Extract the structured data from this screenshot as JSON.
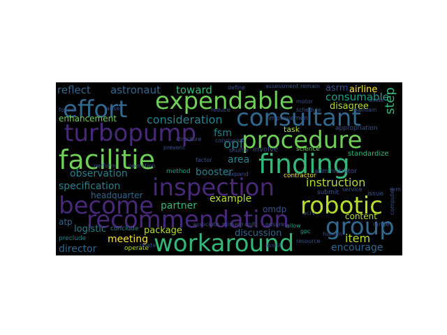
{
  "word_cloud": {
    "background": "#000000",
    "palette": {
      "purple": "#482878",
      "indigo": "#3b528b",
      "blue": "#31688e",
      "teal": "#26828e",
      "tealgreen": "#1f9e89",
      "green": "#35b779",
      "lightgreen": "#6ece58",
      "yellowgreen": "#b5de2b",
      "yellow": "#fde725"
    },
    "words": [
      {
        "text": "expendable",
        "color": "#6ece58"
      },
      {
        "text": "effort",
        "color": "#31688e"
      },
      {
        "text": "consultant",
        "color": "#31688e"
      },
      {
        "text": "turbopump",
        "color": "#482878"
      },
      {
        "text": "procedure",
        "color": "#6ece58"
      },
      {
        "text": "facilitie",
        "color": "#6ece58"
      },
      {
        "text": "finding",
        "color": "#35b779"
      },
      {
        "text": "inspection",
        "color": "#482878"
      },
      {
        "text": "become",
        "color": "#482878"
      },
      {
        "text": "robotic",
        "color": "#b5de2b"
      },
      {
        "text": "recommendation",
        "color": "#482878"
      },
      {
        "text": "group",
        "color": "#31688e"
      },
      {
        "text": "workaround",
        "color": "#35b779"
      },
      {
        "text": "reflect",
        "color": "#31688e"
      },
      {
        "text": "astronaut",
        "color": "#31688e"
      },
      {
        "text": "toward",
        "color": "#35b779"
      },
      {
        "text": "airline",
        "color": "#fde725"
      },
      {
        "text": "consumable",
        "color": "#1f9e89"
      },
      {
        "text": "asrm",
        "color": "#3b528b"
      },
      {
        "text": "disagree",
        "color": "#b5de2b"
      },
      {
        "text": "enhancement",
        "color": "#6ece58"
      },
      {
        "text": "consideration",
        "color": "#26828e"
      },
      {
        "text": "task",
        "color": "#b5de2b"
      },
      {
        "text": "step",
        "color": "#35b779"
      },
      {
        "text": "fsm",
        "color": "#26828e"
      },
      {
        "text": "opf",
        "color": "#26828e"
      },
      {
        "text": "area",
        "color": "#26828e"
      },
      {
        "text": "observation",
        "color": "#26828e"
      },
      {
        "text": "booster",
        "color": "#26828e"
      },
      {
        "text": "instruction",
        "color": "#b5de2b"
      },
      {
        "text": "specification",
        "color": "#26828e"
      },
      {
        "text": "headquarter",
        "color": "#31688e"
      },
      {
        "text": "example",
        "color": "#b5de2b"
      },
      {
        "text": "partner",
        "color": "#35b779"
      },
      {
        "text": "omdp",
        "color": "#3b528b"
      },
      {
        "text": "content",
        "color": "#b5de2b"
      },
      {
        "text": "logistic",
        "color": "#26828e"
      },
      {
        "text": "package",
        "color": "#b5de2b"
      },
      {
        "text": "meeting",
        "color": "#fde725"
      },
      {
        "text": "discussion",
        "color": "#31688e"
      },
      {
        "text": "item",
        "color": "#b5de2b"
      },
      {
        "text": "encourage",
        "color": "#31688e"
      },
      {
        "text": "director",
        "color": "#31688e"
      },
      {
        "text": "atp",
        "color": "#31688e"
      },
      {
        "text": "conclude",
        "color": "#26828e"
      },
      {
        "text": "operate",
        "color": "#b5de2b"
      },
      {
        "text": "preclude",
        "color": "#26828e"
      },
      {
        "text": "method",
        "color": "#1f9e89"
      },
      {
        "text": "contractor",
        "color": "#fde725"
      },
      {
        "text": "science",
        "color": "#6ece58"
      },
      {
        "text": "involve",
        "color": "#3b528b"
      },
      {
        "text": "standardize",
        "color": "#35b779"
      },
      {
        "text": "improvement",
        "color": "#3b528b"
      },
      {
        "text": "appropriation",
        "color": "#3b528b"
      },
      {
        "text": "conclusion",
        "color": "#3b528b"
      },
      {
        "text": "shuttle",
        "color": "#3b528b"
      },
      {
        "text": "administrator",
        "color": "#3b528b"
      },
      {
        "text": "submit",
        "color": "#3b528b"
      },
      {
        "text": "service",
        "color": "#3b528b"
      },
      {
        "text": "issue",
        "color": "#3b528b"
      },
      {
        "text": "computer",
        "color": "#3b528b"
      },
      {
        "text": "allow",
        "color": "#1f9e89"
      },
      {
        "text": "gpc",
        "color": "#1f9e89"
      },
      {
        "text": "drm",
        "color": "#3b528b"
      },
      {
        "text": "human",
        "color": "#3b528b"
      },
      {
        "text": "arise",
        "color": "#3b528b"
      },
      {
        "text": "follow",
        "color": "#3b528b"
      },
      {
        "text": "motor",
        "color": "#3b528b"
      },
      {
        "text": "maintain",
        "color": "#3b528b"
      },
      {
        "text": "reduce",
        "color": "#3b528b"
      },
      {
        "text": "assessment",
        "color": "#3b528b"
      },
      {
        "text": "define",
        "color": "#3b528b"
      },
      {
        "text": "expand",
        "color": "#3b528b"
      },
      {
        "text": "factor",
        "color": "#3b528b"
      },
      {
        "text": "structure",
        "color": "#3b528b"
      },
      {
        "text": "prevent",
        "color": "#3b528b"
      },
      {
        "text": "resource",
        "color": "#3b528b"
      },
      {
        "text": "assist",
        "color": "#3b528b"
      },
      {
        "text": "schedule",
        "color": "#3b528b"
      },
      {
        "text": "ensure",
        "color": "#3b528b"
      },
      {
        "text": "associate",
        "color": "#3b528b"
      },
      {
        "text": "mission",
        "color": "#3b528b"
      },
      {
        "text": "unit",
        "color": "#3b528b"
      },
      {
        "text": "range",
        "color": "#3b528b"
      },
      {
        "text": "aside",
        "color": "#3b528b"
      },
      {
        "text": "acrv",
        "color": "#3b528b"
      },
      {
        "text": "remain",
        "color": "#3b528b"
      },
      {
        "text": "relate",
        "color": "#3b528b"
      },
      {
        "text": "operation",
        "color": "#3b528b"
      },
      {
        "text": "perform",
        "color": "#3b528b"
      }
    ]
  }
}
